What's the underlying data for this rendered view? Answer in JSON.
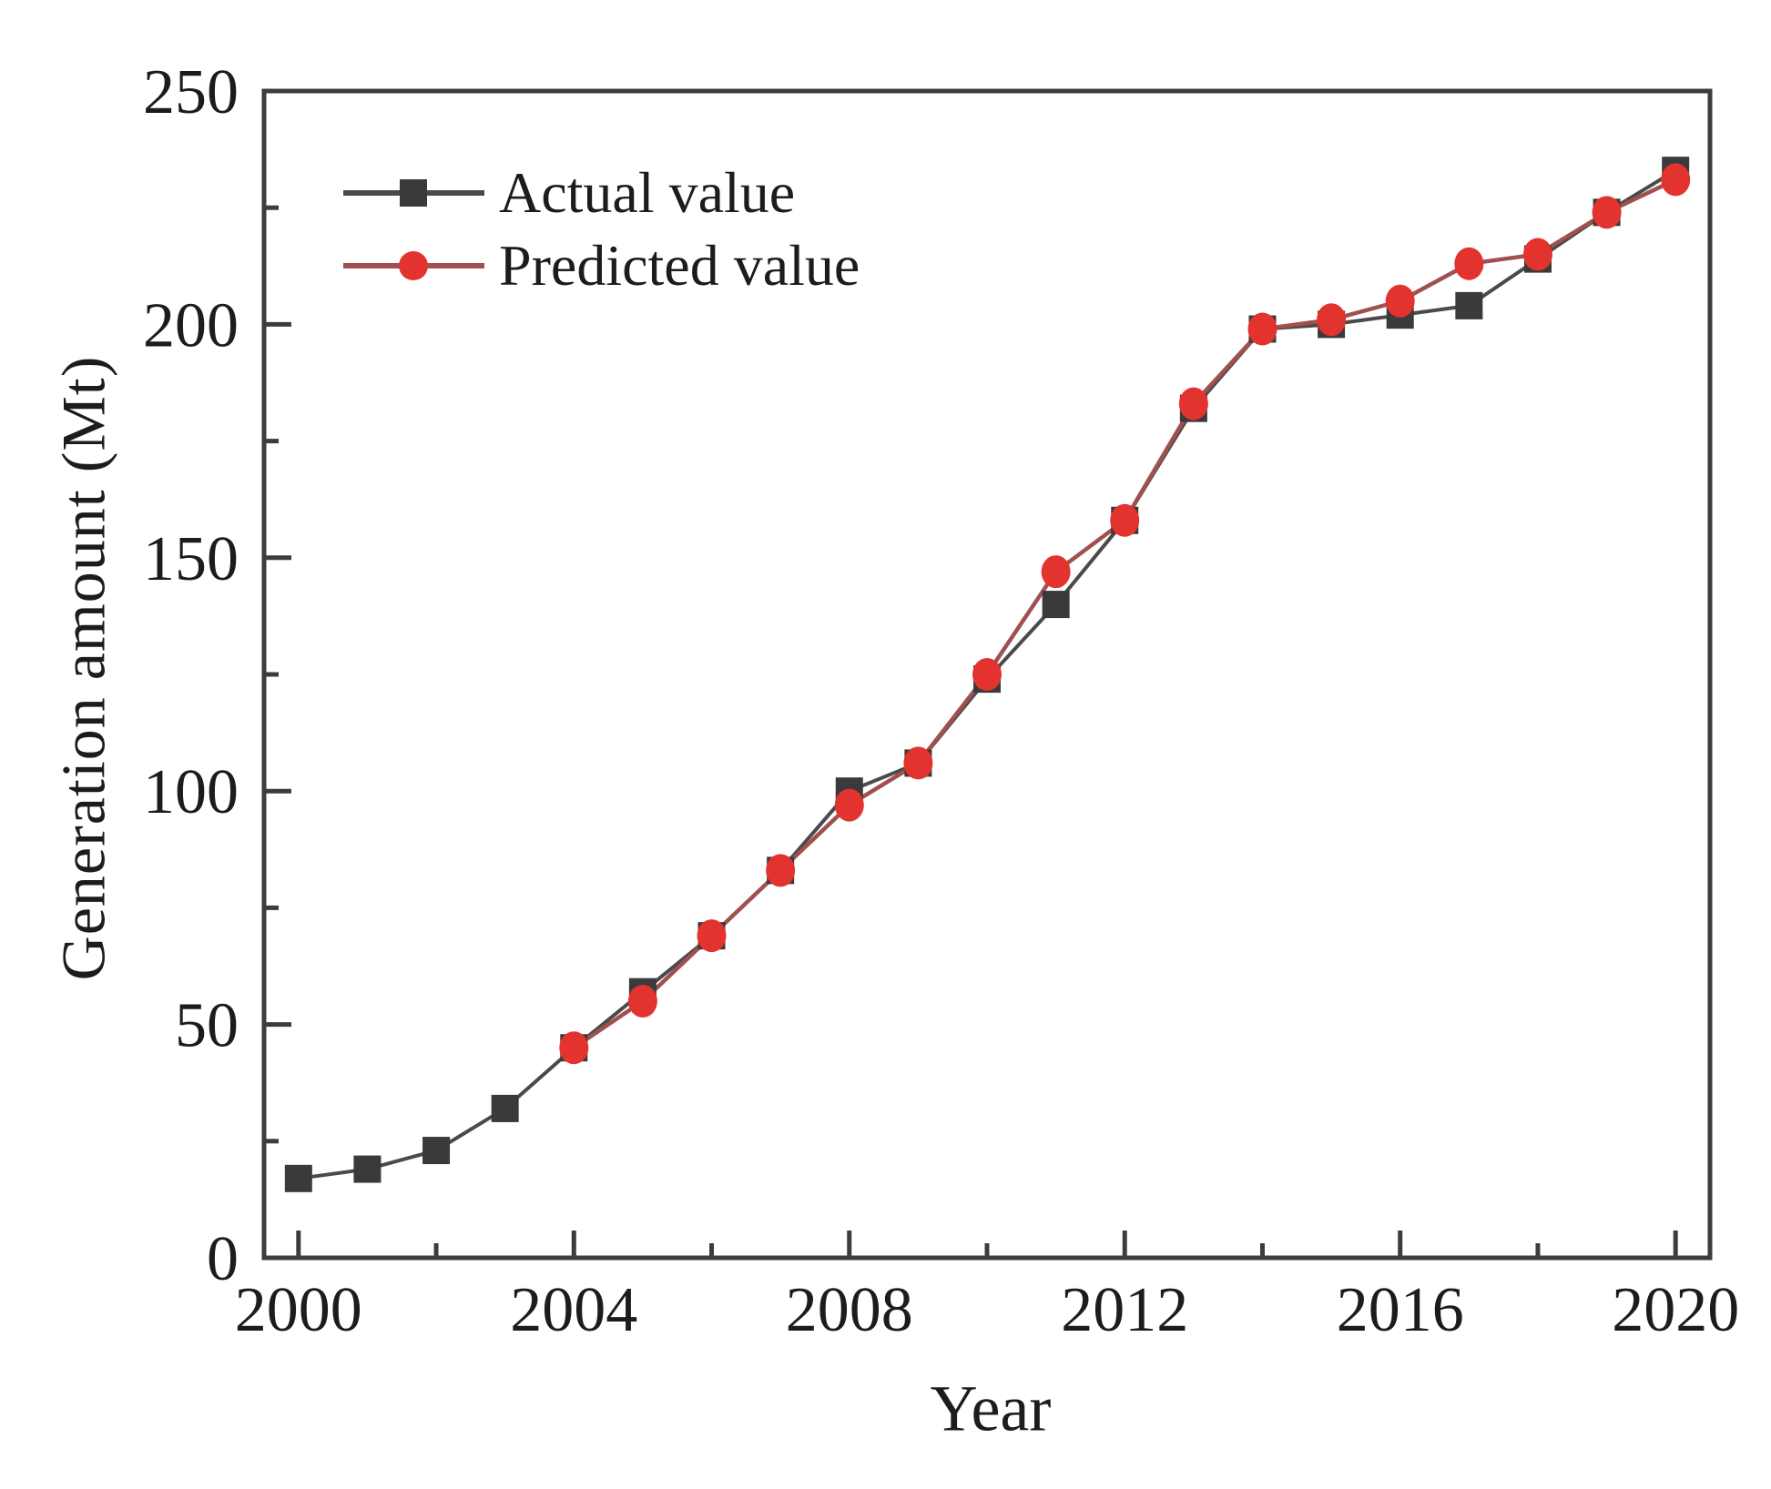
{
  "chart_data": {
    "type": "line",
    "title": "",
    "xlabel": "Year",
    "ylabel": "Generation amount (Mt)",
    "x": [
      2000,
      2001,
      2002,
      2003,
      2004,
      2005,
      2006,
      2007,
      2008,
      2009,
      2010,
      2011,
      2012,
      2013,
      2014,
      2015,
      2016,
      2017,
      2018,
      2019,
      2020
    ],
    "series": [
      {
        "name": "Actual value",
        "marker": "square",
        "line_color": "#4a4a4a",
        "marker_color": "#3a3a3a",
        "values": [
          17,
          19,
          23,
          32,
          45,
          57,
          69,
          83,
          100,
          106,
          124,
          140,
          158,
          182,
          199,
          200,
          202,
          204,
          214,
          224,
          233
        ]
      },
      {
        "name": "Predicted value",
        "marker": "circle",
        "line_color": "#a05050",
        "marker_color": "#e2332e",
        "values": [
          null,
          null,
          null,
          null,
          45,
          55,
          69,
          83,
          97,
          106,
          125,
          147,
          158,
          183,
          199,
          201,
          205,
          213,
          215,
          224,
          231
        ]
      }
    ],
    "xlim": [
      1999.5,
      2020.5
    ],
    "ylim": [
      0,
      250
    ],
    "x_major_ticks": [
      2000,
      2004,
      2008,
      2012,
      2016,
      2020
    ],
    "x_minor_ticks": [
      2002,
      2006,
      2010,
      2014,
      2018
    ],
    "y_major_ticks": [
      0,
      50,
      100,
      150,
      200,
      250
    ],
    "y_minor_ticks": [
      25,
      75,
      125,
      175,
      225
    ],
    "grid": false,
    "legend_position": "top-left",
    "axis_color": "#3c3c3c",
    "text_color": "#1c1c1c",
    "background_color": "#ffffff"
  }
}
